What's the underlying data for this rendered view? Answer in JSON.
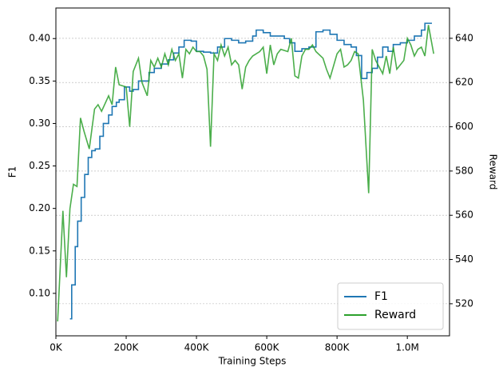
{
  "chart_data": {
    "type": "line",
    "x_label": "Training Steps",
    "y_label": "F1",
    "y2_label": "Reward",
    "xlim": [
      0,
      1120000
    ],
    "xticks": [
      {
        "value": 0,
        "label": "0K"
      },
      {
        "value": 200000,
        "label": "200K"
      },
      {
        "value": 400000,
        "label": "400K"
      },
      {
        "value": 600000,
        "label": "600K"
      },
      {
        "value": 800000,
        "label": "800K"
      },
      {
        "value": 1000000,
        "label": "1.0M"
      }
    ],
    "ylim": [
      0.05,
      0.436
    ],
    "yticks": [
      {
        "value": 0.1,
        "label": "0.10"
      },
      {
        "value": 0.15,
        "label": "0.15"
      },
      {
        "value": 0.2,
        "label": "0.20"
      },
      {
        "value": 0.25,
        "label": "0.25"
      },
      {
        "value": 0.3,
        "label": "0.30"
      },
      {
        "value": 0.35,
        "label": "0.35"
      },
      {
        "value": 0.4,
        "label": "0.40"
      }
    ],
    "y2lim": [
      505.5,
      653.7
    ],
    "y2ticks": [
      520,
      540,
      560,
      580,
      600,
      620,
      640
    ],
    "grid": true,
    "legend": "lower right",
    "series": [
      {
        "name": "F1",
        "color": "#1f77b4",
        "step": true,
        "x": [
          40000,
          45000,
          55000,
          62000,
          72000,
          82000,
          92000,
          102000,
          112000,
          125000,
          135000,
          150000,
          160000,
          172000,
          180000,
          195000,
          210000,
          220000,
          235000,
          265000,
          280000,
          300000,
          320000,
          335000,
          350000,
          365000,
          385000,
          400000,
          420000,
          440000,
          460000,
          480000,
          500000,
          520000,
          540000,
          560000,
          570000,
          590000,
          610000,
          650000,
          665000,
          680000,
          700000,
          720000,
          740000,
          760000,
          780000,
          800000,
          820000,
          840000,
          855000,
          870000,
          885000,
          900000,
          915000,
          930000,
          945000,
          960000,
          980000,
          1000000,
          1020000,
          1040000,
          1050000,
          1070000
        ],
        "values": [
          0.07,
          0.11,
          0.155,
          0.185,
          0.213,
          0.24,
          0.26,
          0.268,
          0.27,
          0.285,
          0.3,
          0.31,
          0.32,
          0.325,
          0.328,
          0.343,
          0.338,
          0.34,
          0.35,
          0.36,
          0.365,
          0.37,
          0.375,
          0.383,
          0.39,
          0.398,
          0.397,
          0.385,
          0.384,
          0.383,
          0.39,
          0.4,
          0.398,
          0.395,
          0.397,
          0.403,
          0.41,
          0.407,
          0.403,
          0.4,
          0.395,
          0.385,
          0.388,
          0.39,
          0.408,
          0.41,
          0.405,
          0.398,
          0.393,
          0.39,
          0.38,
          0.353,
          0.36,
          0.365,
          0.378,
          0.39,
          0.385,
          0.393,
          0.395,
          0.398,
          0.403,
          0.41,
          0.418,
          0.418
        ]
      },
      {
        "name": "Reward",
        "color": "#2ca02c",
        "axis": "y2",
        "x": [
          5000,
          20000,
          30000,
          40000,
          50000,
          60000,
          70000,
          80000,
          95000,
          110000,
          120000,
          130000,
          150000,
          160000,
          170000,
          180000,
          200000,
          210000,
          220000,
          235000,
          245000,
          260000,
          270000,
          280000,
          290000,
          300000,
          310000,
          320000,
          330000,
          340000,
          350000,
          360000,
          370000,
          380000,
          390000,
          400000,
          410000,
          420000,
          430000,
          440000,
          450000,
          460000,
          470000,
          480000,
          490000,
          500000,
          510000,
          520000,
          530000,
          540000,
          550000,
          560000,
          580000,
          590000,
          600000,
          610000,
          620000,
          630000,
          640000,
          660000,
          670000,
          680000,
          690000,
          700000,
          710000,
          720000,
          730000,
          740000,
          760000,
          770000,
          780000,
          800000,
          810000,
          820000,
          830000,
          840000,
          850000,
          860000,
          875000,
          890000,
          900000,
          910000,
          920000,
          930000,
          940000,
          950000,
          960000,
          970000,
          980000,
          990000,
          1000000,
          1010000,
          1020000,
          1030000,
          1040000,
          1050000,
          1060000,
          1075000
        ],
        "values": [
          512,
          562,
          532,
          563,
          574,
          573,
          604,
          598,
          590,
          608,
          610,
          607,
          614,
          610,
          627,
          619,
          618,
          600,
          625,
          631,
          620,
          614,
          630,
          627,
          631,
          627,
          633,
          628,
          635,
          630,
          633,
          622,
          635,
          633,
          636,
          634,
          634,
          632,
          626,
          591,
          633,
          630,
          637,
          632,
          636,
          628,
          630,
          628,
          617,
          627,
          630,
          632,
          634,
          636,
          624,
          637,
          628,
          633,
          635,
          634,
          640,
          623,
          622,
          632,
          635,
          635,
          637,
          634,
          631,
          626,
          622,
          633,
          635,
          627,
          628,
          630,
          634,
          633,
          612,
          570,
          635,
          630,
          627,
          624,
          632,
          624,
          636,
          626,
          628,
          630,
          640,
          637,
          632,
          635,
          636,
          632,
          646,
          633
        ]
      }
    ]
  }
}
